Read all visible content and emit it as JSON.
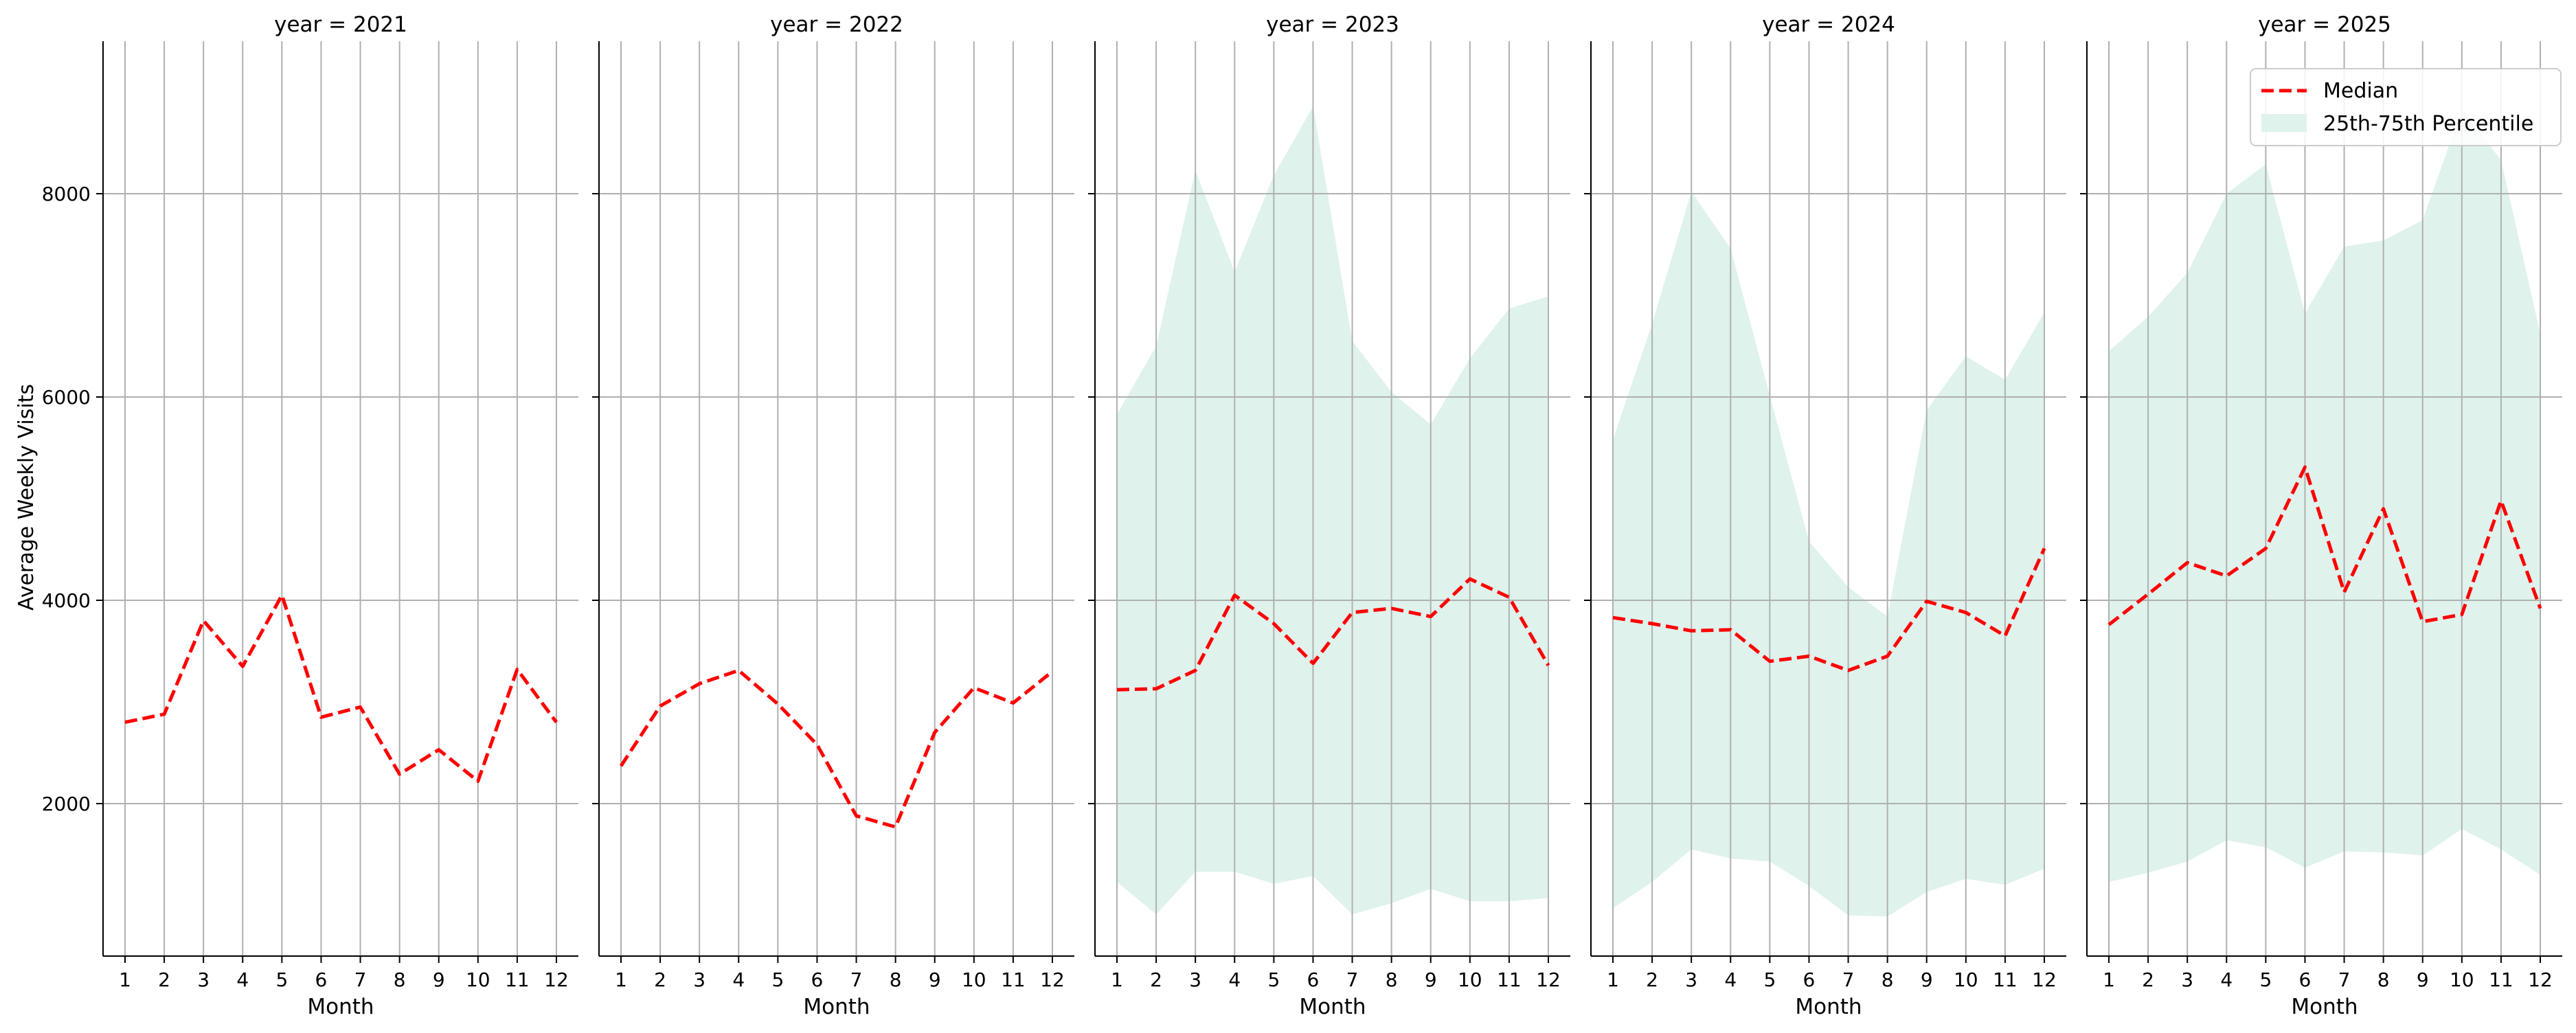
{
  "chart_data": {
    "type": "line",
    "ylabel": "Average Weekly Visits",
    "xlabel": "Month",
    "ylim": [
      500,
      9500
    ],
    "yticks": [
      2000,
      4000,
      6000,
      8000
    ],
    "x": [
      1,
      2,
      3,
      4,
      5,
      6,
      7,
      8,
      9,
      10,
      11,
      12
    ],
    "grid": true,
    "legend_position": "top-right",
    "legend": {
      "median_label": "Median",
      "band_label": "25th-75th Percentile"
    },
    "colors": {
      "median": "#ff0000",
      "band": "#dff2ec",
      "grid": "#b0b0b0",
      "axis": "#000000"
    },
    "panels": [
      {
        "title": "year = 2021",
        "median": [
          2800,
          2880,
          3800,
          3350,
          4050,
          2850,
          2950,
          2290,
          2530,
          2220,
          3320,
          2800
        ]
      },
      {
        "title": "year = 2022",
        "median": [
          2370,
          2960,
          3180,
          3310,
          2980,
          2580,
          1880,
          1770,
          2700,
          3140,
          2990,
          3300
        ]
      },
      {
        "title": "year = 2023",
        "median": [
          3120,
          3130,
          3310,
          4050,
          3770,
          3380,
          3880,
          3920,
          3840,
          4210,
          4030,
          3360
        ],
        "p25": [
          1230,
          910,
          1330,
          1330,
          1210,
          1290,
          910,
          1020,
          1160,
          1040,
          1040,
          1070
        ],
        "p75": [
          5830,
          6500,
          8230,
          7230,
          8180,
          8860,
          6550,
          6050,
          5730,
          6380,
          6870,
          6990
        ]
      },
      {
        "title": "year = 2024",
        "median": [
          3830,
          3770,
          3700,
          3710,
          3400,
          3450,
          3310,
          3450,
          3990,
          3880,
          3650,
          4510
        ],
        "p25": [
          970,
          1230,
          1550,
          1460,
          1430,
          1190,
          900,
          890,
          1130,
          1260,
          1200,
          1360
        ],
        "p75": [
          5580,
          6720,
          8020,
          7460,
          6010,
          4580,
          4130,
          3840,
          5870,
          6400,
          6170,
          6830
        ]
      },
      {
        "title": "year = 2025",
        "median": [
          3760,
          4060,
          4370,
          4240,
          4510,
          5310,
          4080,
          4900,
          3790,
          3860,
          4980,
          3920
        ],
        "p25": [
          1230,
          1320,
          1430,
          1640,
          1570,
          1370,
          1530,
          1520,
          1490,
          1750,
          1550,
          1300
        ],
        "p75": [
          6450,
          6790,
          7220,
          8000,
          8290,
          6820,
          7480,
          7540,
          7740,
          8830,
          8330,
          6620
        ]
      }
    ]
  }
}
